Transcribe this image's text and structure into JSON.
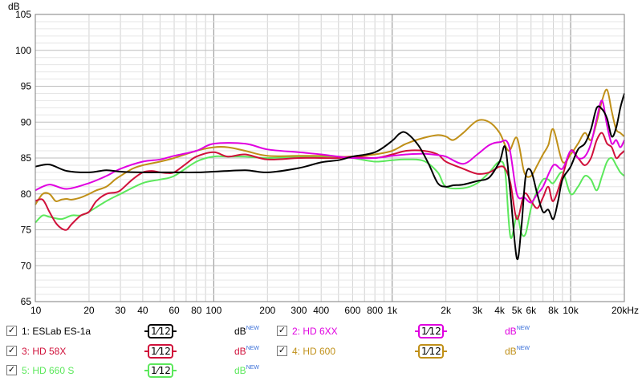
{
  "chart_data": {
    "type": "line",
    "y_unit": "dB",
    "x_axis_scale": "log",
    "xlim": [
      10,
      20000
    ],
    "ylim": [
      65,
      105
    ],
    "grid": true,
    "x_ticks": [
      {
        "v": 10,
        "label": "10"
      },
      {
        "v": 20,
        "label": "20"
      },
      {
        "v": 30,
        "label": "30"
      },
      {
        "v": 40,
        "label": "40"
      },
      {
        "v": 60,
        "label": "60"
      },
      {
        "v": 80,
        "label": "80"
      },
      {
        "v": 100,
        "label": "100"
      },
      {
        "v": 200,
        "label": "200"
      },
      {
        "v": 300,
        "label": "300"
      },
      {
        "v": 400,
        "label": "400"
      },
      {
        "v": 600,
        "label": "600"
      },
      {
        "v": 800,
        "label": "800"
      },
      {
        "v": 1000,
        "label": "1k"
      },
      {
        "v": 2000,
        "label": "2k"
      },
      {
        "v": 3000,
        "label": "3k"
      },
      {
        "v": 4000,
        "label": "4k"
      },
      {
        "v": 5000,
        "label": "5k"
      },
      {
        "v": 6000,
        "label": "6k"
      },
      {
        "v": 8000,
        "label": "8k"
      },
      {
        "v": 10000,
        "label": "10k"
      },
      {
        "v": 20000,
        "label": "20kHz"
      }
    ],
    "y_ticks": [
      {
        "v": 105,
        "label": "105"
      },
      {
        "v": 100,
        "label": "100"
      },
      {
        "v": 95,
        "label": "95"
      },
      {
        "v": 90,
        "label": "90"
      },
      {
        "v": 85,
        "label": "85"
      },
      {
        "v": 80,
        "label": "80"
      },
      {
        "v": 75,
        "label": "75"
      },
      {
        "v": 70,
        "label": "70"
      },
      {
        "v": 65,
        "label": "65"
      }
    ],
    "series": [
      {
        "name": "1: ESLab ES-1a",
        "color": "#000000",
        "x": [
          10,
          12,
          15,
          20,
          25,
          30,
          40,
          50,
          60,
          80,
          100,
          150,
          200,
          300,
          400,
          500,
          600,
          800,
          1000,
          1100,
          1200,
          1400,
          1600,
          1800,
          2000,
          2200,
          2500,
          3000,
          3500,
          4000,
          4300,
          4600,
          5000,
          5300,
          5600,
          6000,
          6500,
          7000,
          7500,
          8000,
          8500,
          9000,
          10000,
          11000,
          12000,
          13000,
          14000,
          15000,
          16000,
          17000,
          18000,
          19000,
          20000
        ],
        "y": [
          83.8,
          84.1,
          83.2,
          83.0,
          83.3,
          83.1,
          83.0,
          83.0,
          83.0,
          83.0,
          83.1,
          83.3,
          83.0,
          83.6,
          84.4,
          84.7,
          85.2,
          85.8,
          87.4,
          88.4,
          88.5,
          86.8,
          84.2,
          81.5,
          81.0,
          81.2,
          81.3,
          81.8,
          82.3,
          84.5,
          86.5,
          80.0,
          71.0,
          75.5,
          82.5,
          83.2,
          80.0,
          77.5,
          77.8,
          76.5,
          79.0,
          82.0,
          83.8,
          86.2,
          87.0,
          89.0,
          92.0,
          91.8,
          90.5,
          88.0,
          89.2,
          92.0,
          94.0
        ]
      },
      {
        "name": "2: HD 6XX",
        "color": "#e000e0",
        "x": [
          10,
          12,
          15,
          20,
          25,
          30,
          40,
          50,
          60,
          80,
          100,
          150,
          200,
          300,
          400,
          500,
          600,
          800,
          1000,
          1200,
          1500,
          1800,
          2000,
          2500,
          3000,
          3500,
          4000,
          4500,
          5000,
          5500,
          6000,
          6500,
          7000,
          8000,
          9000,
          10000,
          11000,
          12000,
          13000,
          14000,
          15000,
          16000,
          17000,
          18000,
          19000,
          20000
        ],
        "y": [
          80.5,
          81.3,
          80.7,
          81.5,
          82.5,
          83.5,
          84.5,
          84.8,
          85.3,
          86.0,
          87.0,
          87.0,
          86.2,
          85.8,
          85.5,
          85.2,
          85.0,
          85.0,
          85.3,
          85.5,
          85.6,
          85.4,
          85.2,
          84.2,
          85.5,
          86.8,
          87.2,
          86.8,
          80.0,
          79.5,
          78.8,
          80.0,
          81.0,
          84.0,
          83.5,
          86.0,
          85.0,
          85.2,
          87.0,
          90.5,
          93.0,
          89.5,
          87.0,
          87.5,
          86.5,
          87.5
        ]
      },
      {
        "name": "3: HD 58X",
        "color": "#d0103a",
        "x": [
          10,
          11,
          12,
          13,
          14,
          15,
          16,
          18,
          20,
          22,
          25,
          28,
          30,
          35,
          40,
          45,
          50,
          55,
          60,
          70,
          80,
          100,
          120,
          150,
          200,
          300,
          400,
          500,
          600,
          800,
          1000,
          1200,
          1500,
          1800,
          2000,
          2500,
          3000,
          3500,
          4000,
          4300,
          4600,
          5000,
          5500,
          6000,
          6500,
          7000,
          7500,
          8000,
          9000,
          10000,
          11000,
          12000,
          13000,
          14000,
          15000,
          16000,
          17000,
          18000,
          19000,
          20000
        ],
        "y": [
          79.0,
          79.2,
          77.5,
          76.0,
          75.2,
          75.0,
          75.8,
          77.0,
          77.5,
          79.0,
          80.0,
          80.2,
          80.5,
          82.0,
          83.0,
          83.2,
          83.0,
          82.9,
          83.0,
          84.2,
          85.2,
          85.8,
          85.2,
          85.5,
          84.8,
          85.0,
          85.0,
          85.0,
          85.2,
          85.0,
          85.5,
          86.0,
          86.0,
          85.5,
          84.5,
          83.5,
          82.8,
          83.0,
          83.8,
          83.5,
          81.5,
          76.5,
          80.0,
          79.0,
          78.0,
          79.5,
          81.0,
          79.0,
          82.5,
          86.0,
          85.0,
          84.0,
          85.0,
          87.5,
          88.5,
          87.0,
          86.5,
          85.0,
          85.5,
          86.0
        ]
      },
      {
        "name": "4: HD 600",
        "color": "#c09018",
        "x": [
          10,
          11,
          12,
          13,
          14,
          15,
          16,
          18,
          20,
          22,
          25,
          28,
          30,
          35,
          40,
          50,
          60,
          80,
          100,
          120,
          150,
          200,
          300,
          400,
          500,
          600,
          800,
          1000,
          1200,
          1500,
          1800,
          2000,
          2200,
          2500,
          3000,
          3500,
          4000,
          4500,
          5000,
          5500,
          6000,
          6500,
          7000,
          7500,
          8000,
          9000,
          10000,
          11000,
          12000,
          13000,
          14000,
          15000,
          16000,
          17000,
          18000,
          19000,
          20000
        ],
        "y": [
          78.5,
          80.0,
          80.0,
          79.0,
          79.2,
          79.3,
          79.2,
          79.5,
          80.0,
          80.5,
          81.0,
          82.0,
          82.5,
          83.5,
          84.0,
          84.5,
          85.0,
          86.0,
          86.5,
          86.5,
          86.0,
          85.3,
          85.3,
          85.3,
          85.2,
          85.2,
          85.5,
          86.0,
          87.0,
          87.8,
          88.2,
          88.0,
          87.5,
          88.5,
          90.2,
          90.0,
          88.5,
          86.0,
          87.8,
          83.0,
          82.5,
          84.0,
          85.5,
          86.8,
          89.0,
          84.5,
          85.5,
          87.0,
          88.5,
          87.5,
          90.0,
          93.0,
          94.5,
          91.5,
          89.0,
          88.5,
          88.0
        ]
      },
      {
        "name": "5: HD 660 S",
        "color": "#5ce85c",
        "x": [
          10,
          11,
          12,
          14,
          16,
          18,
          20,
          25,
          30,
          40,
          50,
          60,
          80,
          100,
          120,
          150,
          200,
          300,
          400,
          500,
          600,
          800,
          1000,
          1200,
          1500,
          1800,
          2000,
          2500,
          3000,
          3500,
          4000,
          4300,
          4600,
          5000,
          5300,
          5600,
          6000,
          6500,
          7000,
          7500,
          8000,
          9000,
          10000,
          11000,
          12000,
          13000,
          14000,
          15000,
          16000,
          17000,
          18000,
          19000,
          20000
        ],
        "y": [
          76.0,
          77.0,
          76.8,
          76.5,
          77.0,
          77.0,
          77.5,
          79.0,
          80.0,
          81.5,
          82.0,
          82.5,
          84.5,
          85.2,
          85.2,
          85.2,
          85.0,
          85.2,
          85.2,
          85.2,
          85.0,
          84.5,
          84.7,
          84.8,
          84.6,
          83.0,
          81.0,
          80.8,
          81.5,
          83.0,
          84.5,
          83.0,
          74.0,
          77.0,
          74.5,
          74.5,
          78.0,
          80.5,
          82.0,
          82.0,
          81.5,
          83.0,
          80.0,
          81.0,
          82.5,
          82.0,
          80.5,
          82.5,
          84.5,
          85.0,
          84.0,
          83.0,
          82.5
        ]
      }
    ]
  },
  "legend": {
    "items": [
      {
        "label": "1: ESLab ES-1a",
        "checked": "✓",
        "smooth": "1⁄12",
        "unit": "dB",
        "badge": "NEW",
        "color": "#000000"
      },
      {
        "label": "2: HD 6XX",
        "checked": "✓",
        "smooth": "1⁄12",
        "unit": "dB",
        "badge": "NEW",
        "color": "#e000e0"
      },
      {
        "label": "3: HD 58X",
        "checked": "✓",
        "smooth": "1⁄12",
        "unit": "dB",
        "badge": "NEW",
        "color": "#d0103a"
      },
      {
        "label": "4: HD 600",
        "checked": "✓",
        "smooth": "1⁄12",
        "unit": "dB",
        "badge": "NEW",
        "color": "#c09018"
      },
      {
        "label": "5: HD 660 S",
        "checked": "✓",
        "smooth": "1⁄12",
        "unit": "dB",
        "badge": "NEW",
        "color": "#5ce85c"
      }
    ]
  }
}
